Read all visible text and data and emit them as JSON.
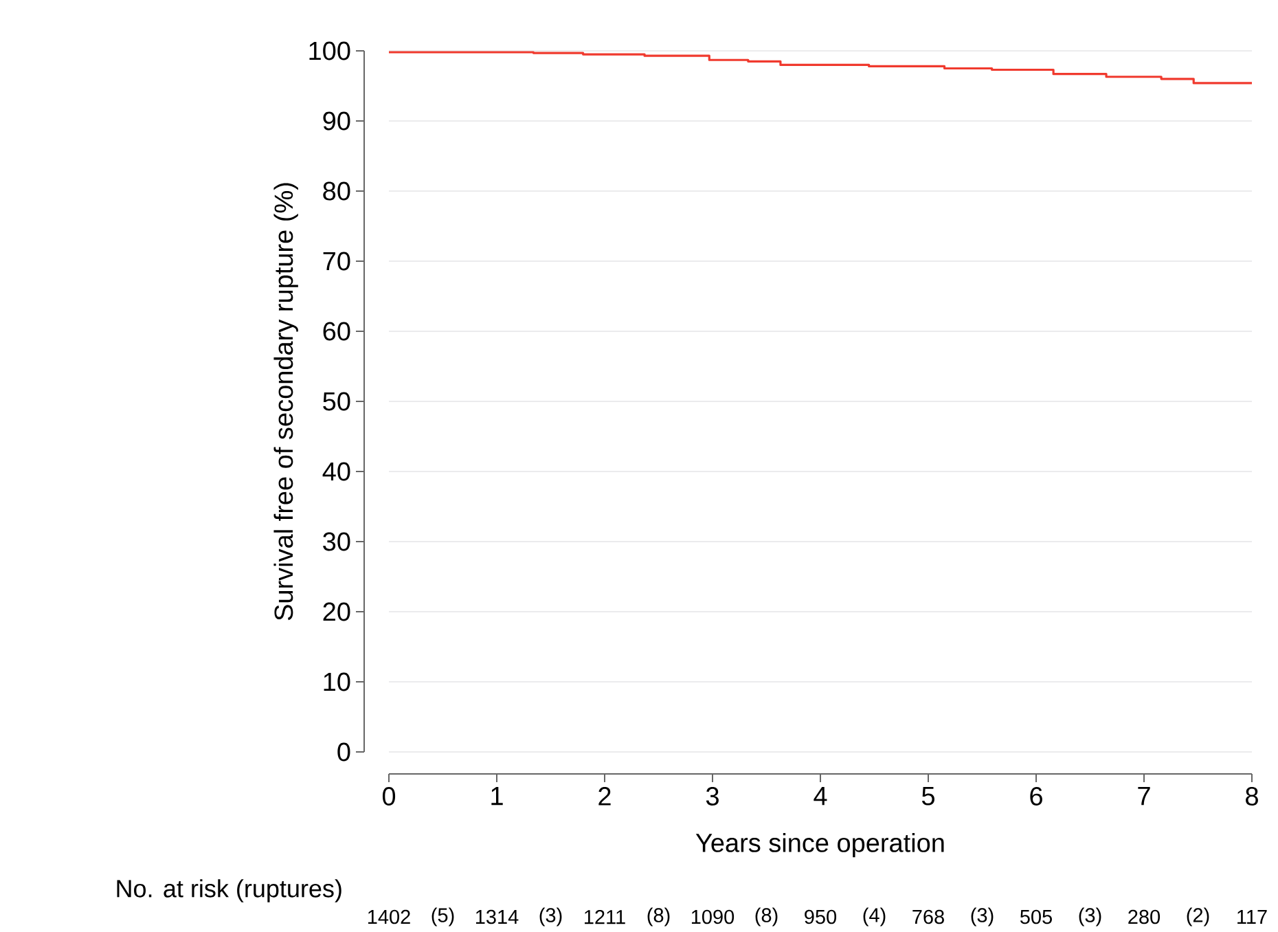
{
  "chart_data": {
    "type": "step",
    "xlabel": "Years since operation",
    "ylabel": "Survival free of secondary rupture (%)",
    "x": [
      0,
      1.34,
      1.8,
      2.37,
      2.97,
      3.33,
      3.63,
      4.45,
      5.15,
      5.59,
      6.16,
      6.65,
      7.16,
      7.46,
      8
    ],
    "series": [
      {
        "color": "#f03a2e",
        "values": [
          99.8,
          99.7,
          99.5,
          99.3,
          98.7,
          98.5,
          98.0,
          97.8,
          97.5,
          97.3,
          96.7,
          96.3,
          96.0,
          95.4,
          95.4
        ]
      }
    ],
    "xlim": [
      0,
      8
    ],
    "ylim": [
      0,
      100
    ],
    "xticks": [
      0,
      1,
      2,
      3,
      4,
      5,
      6,
      7,
      8
    ],
    "yticks": [
      0,
      10,
      20,
      30,
      40,
      50,
      60,
      70,
      80,
      90,
      100
    ],
    "grid": "y",
    "marker": "none",
    "line_style": "solid",
    "annotations": [
      "No. at risk (ruptures)",
      "1402",
      "(5)",
      "1314",
      "(3)",
      "1211",
      "(8)",
      "1090",
      "(8)",
      "950",
      "(4)",
      "768",
      "(3)",
      "505",
      "(3)",
      "280",
      "(2)",
      "117"
    ]
  }
}
